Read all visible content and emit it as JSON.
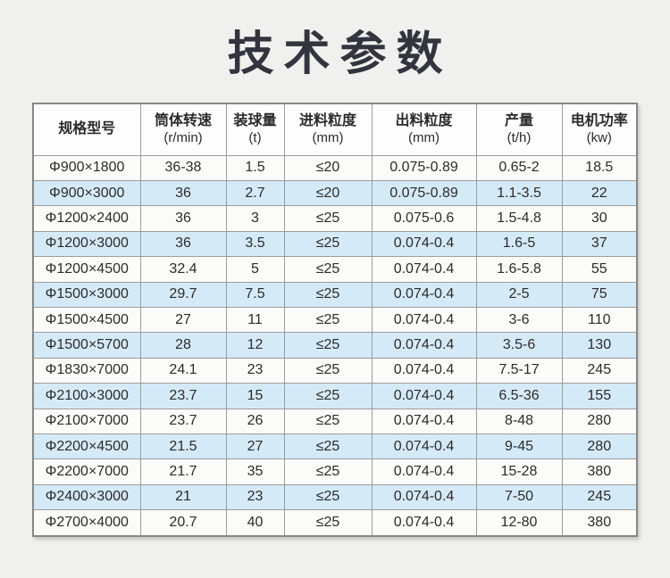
{
  "title": "技术参数",
  "colors": {
    "page_bg": "#f0f0ee",
    "title_color": "#34343f",
    "header_bg": "#fdfdfd",
    "row_bg": "#fbfbfa",
    "row_alt_bg": "#d5eaf7",
    "outer_border": "#878787",
    "grid_border": "#9c9c9c",
    "text_color": "#2b2b2b"
  },
  "chart_data": {
    "type": "table",
    "title": "技术参数",
    "columns": [
      {
        "name": "规格型号",
        "unit": ""
      },
      {
        "name": "筒体转速",
        "unit": "(r/min)"
      },
      {
        "name": "装球量",
        "unit": "(t)"
      },
      {
        "name": "进料粒度",
        "unit": "(mm)"
      },
      {
        "name": "出料粒度",
        "unit": "(mm)"
      },
      {
        "name": "产量",
        "unit": "(t/h)"
      },
      {
        "name": "电机功率",
        "unit": "(kw)"
      }
    ],
    "rows": [
      [
        "Φ900×1800",
        "36-38",
        "1.5",
        "≤20",
        "0.075-0.89",
        "0.65-2",
        "18.5"
      ],
      [
        "Φ900×3000",
        "36",
        "2.7",
        "≤20",
        "0.075-0.89",
        "1.1-3.5",
        "22"
      ],
      [
        "Φ1200×2400",
        "36",
        "3",
        "≤25",
        "0.075-0.6",
        "1.5-4.8",
        "30"
      ],
      [
        "Φ1200×3000",
        "36",
        "3.5",
        "≤25",
        "0.074-0.4",
        "1.6-5",
        "37"
      ],
      [
        "Φ1200×4500",
        "32.4",
        "5",
        "≤25",
        "0.074-0.4",
        "1.6-5.8",
        "55"
      ],
      [
        "Φ1500×3000",
        "29.7",
        "7.5",
        "≤25",
        "0.074-0.4",
        "2-5",
        "75"
      ],
      [
        "Φ1500×4500",
        "27",
        "11",
        "≤25",
        "0.074-0.4",
        "3-6",
        "110"
      ],
      [
        "Φ1500×5700",
        "28",
        "12",
        "≤25",
        "0.074-0.4",
        "3.5-6",
        "130"
      ],
      [
        "Φ1830×7000",
        "24.1",
        "23",
        "≤25",
        "0.074-0.4",
        "7.5-17",
        "245"
      ],
      [
        "Φ2100×3000",
        "23.7",
        "15",
        "≤25",
        "0.074-0.4",
        "6.5-36",
        "155"
      ],
      [
        "Φ2100×7000",
        "23.7",
        "26",
        "≤25",
        "0.074-0.4",
        "8-48",
        "280"
      ],
      [
        "Φ2200×4500",
        "21.5",
        "27",
        "≤25",
        "0.074-0.4",
        "9-45",
        "280"
      ],
      [
        "Φ2200×7000",
        "21.7",
        "35",
        "≤25",
        "0.074-0.4",
        "15-28",
        "380"
      ],
      [
        "Φ2400×3000",
        "21",
        "23",
        "≤25",
        "0.074-0.4",
        "7-50",
        "245"
      ],
      [
        "Φ2700×4000",
        "20.7",
        "40",
        "≤25",
        "0.074-0.4",
        "12-80",
        "380"
      ]
    ]
  }
}
